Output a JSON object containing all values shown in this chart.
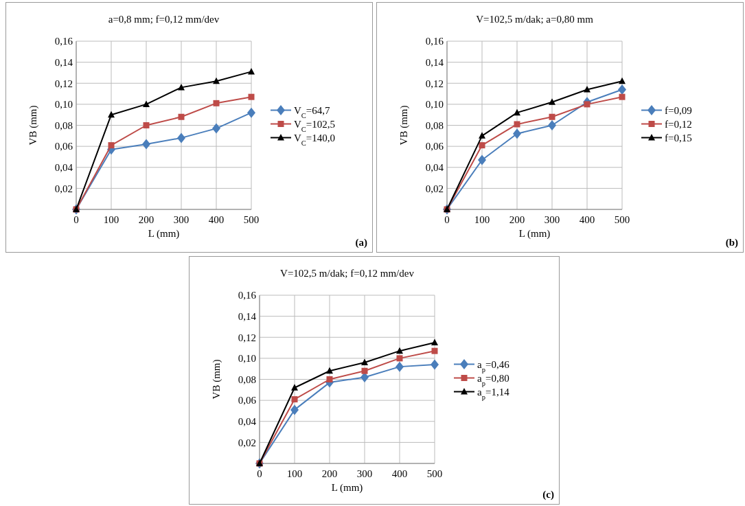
{
  "chart_data": [
    {
      "type": "line",
      "title": "a=0,8 mm; f=0,12 mm/dev",
      "xlabel": "L (mm)",
      "ylabel": "VB (mm)",
      "annotations": [
        "(a)"
      ],
      "x": [
        0,
        100,
        200,
        300,
        400,
        500
      ],
      "xlim": [
        0,
        500
      ],
      "xticks": [
        0,
        100,
        200,
        300,
        400,
        500
      ],
      "ylim": [
        0,
        0.16
      ],
      "yticks": [
        {
          "value": 0,
          "label": null
        },
        {
          "value": 0.02,
          "label": "0,02"
        },
        {
          "value": 0.04,
          "label": "0,04"
        },
        {
          "value": 0.06,
          "label": "0,06"
        },
        {
          "value": 0.08,
          "label": "0,08"
        },
        {
          "value": 0.1,
          "label": "0,10"
        },
        {
          "value": 0.12,
          "label": "0,12"
        },
        {
          "value": 0.14,
          "label": "0,14"
        },
        {
          "value": 0.16,
          "label": "0,16"
        }
      ],
      "grid": true,
      "legend": "right",
      "line_style": "solid",
      "series": [
        {
          "name": "V$_{C}$=64,7",
          "color": "#4a7ebb",
          "marker": "diamond",
          "values": [
            0,
            0.057,
            0.062,
            0.068,
            0.077,
            0.092
          ]
        },
        {
          "name": "V$_{C}$=102,5",
          "color": "#be4b48",
          "marker": "square",
          "values": [
            0,
            0.061,
            0.08,
            0.088,
            0.101,
            0.107
          ]
        },
        {
          "name": "V$_{C}$=140,0",
          "color": "#000000",
          "marker": "triangle",
          "values": [
            0,
            0.09,
            0.1,
            0.116,
            0.122,
            0.131
          ]
        }
      ]
    },
    {
      "type": "line",
      "title": "V=102,5 m/dak; a=0,80 mm",
      "xlabel": "L (mm)",
      "ylabel": "VB (mm)",
      "annotations": [
        "(b)"
      ],
      "x": [
        0,
        100,
        200,
        300,
        400,
        500
      ],
      "xlim": [
        0,
        500
      ],
      "xticks": [
        0,
        100,
        200,
        300,
        400,
        500
      ],
      "ylim": [
        0,
        0.16
      ],
      "yticks": [
        {
          "value": 0,
          "label": null
        },
        {
          "value": 0.02,
          "label": "0,02"
        },
        {
          "value": 0.04,
          "label": "0,04"
        },
        {
          "value": 0.06,
          "label": "0,06"
        },
        {
          "value": 0.08,
          "label": "0,08"
        },
        {
          "value": 0.1,
          "label": "0,10"
        },
        {
          "value": 0.12,
          "label": "0,12"
        },
        {
          "value": 0.14,
          "label": "0,14"
        },
        {
          "value": 0.16,
          "label": "0,16"
        }
      ],
      "grid": true,
      "legend": "right",
      "line_style": "solid",
      "series": [
        {
          "name": "f=0,09",
          "color": "#4a7ebb",
          "marker": "diamond",
          "values": [
            0,
            0.047,
            0.072,
            0.08,
            0.102,
            0.114
          ]
        },
        {
          "name": "f=0,12",
          "color": "#be4b48",
          "marker": "square",
          "values": [
            0,
            0.061,
            0.081,
            0.088,
            0.1,
            0.107
          ]
        },
        {
          "name": "f=0,15",
          "color": "#000000",
          "marker": "triangle",
          "values": [
            0,
            0.07,
            0.092,
            0.102,
            0.114,
            0.122
          ]
        }
      ]
    },
    {
      "type": "line",
      "title": "V=102,5 m/dak; f=0,12 mm/dev",
      "xlabel": "L (mm)",
      "ylabel": "VB (mm)",
      "annotations": [
        "(c)"
      ],
      "x": [
        0,
        100,
        200,
        300,
        400,
        500
      ],
      "xlim": [
        0,
        500
      ],
      "xticks": [
        0,
        100,
        200,
        300,
        400,
        500
      ],
      "ylim": [
        0,
        0.16
      ],
      "yticks": [
        {
          "value": 0,
          "label": null
        },
        {
          "value": 0.02,
          "label": "0,02"
        },
        {
          "value": 0.04,
          "label": "0,04"
        },
        {
          "value": 0.06,
          "label": "0,06"
        },
        {
          "value": 0.08,
          "label": "0,08"
        },
        {
          "value": 0.1,
          "label": "0,10"
        },
        {
          "value": 0.12,
          "label": "0,12"
        },
        {
          "value": 0.14,
          "label": "0,14"
        },
        {
          "value": 0.16,
          "label": "0,16"
        }
      ],
      "grid": true,
      "legend": "right",
      "line_style": "solid",
      "series": [
        {
          "name": "a$_{p}$=0,46",
          "color": "#4a7ebb",
          "marker": "diamond",
          "values": [
            0,
            0.051,
            0.077,
            0.082,
            0.092,
            0.094
          ]
        },
        {
          "name": "a$_{p}$=0,80",
          "color": "#be4b48",
          "marker": "square",
          "values": [
            0,
            0.061,
            0.08,
            0.088,
            0.1,
            0.107
          ]
        },
        {
          "name": "a$_{p}$=1,14",
          "color": "#000000",
          "marker": "triangle",
          "values": [
            0,
            0.072,
            0.088,
            0.096,
            0.107,
            0.115
          ]
        }
      ]
    }
  ]
}
